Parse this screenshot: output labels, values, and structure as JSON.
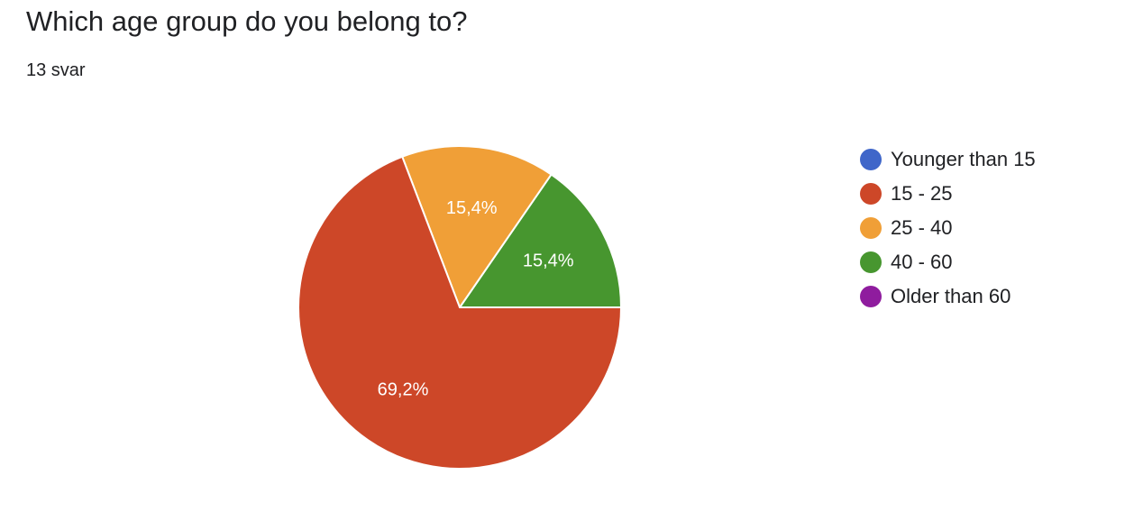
{
  "question": {
    "title": "Which age group do you belong to?",
    "response_count": "13 svar"
  },
  "chart_data": {
    "type": "pie",
    "title": "",
    "legend_position": "right",
    "categories": [
      "Younger than 15",
      "15 - 25",
      "25 - 40",
      "40 - 60",
      "Older than 60"
    ],
    "values": [
      0,
      69.2,
      15.4,
      15.4,
      0
    ],
    "labels": [
      "",
      "69,2%",
      "15,4%",
      "15,4%",
      ""
    ],
    "colors": [
      "#3f66c9",
      "#cd4728",
      "#f09f37",
      "#47962f",
      "#8f1c9e"
    ]
  }
}
